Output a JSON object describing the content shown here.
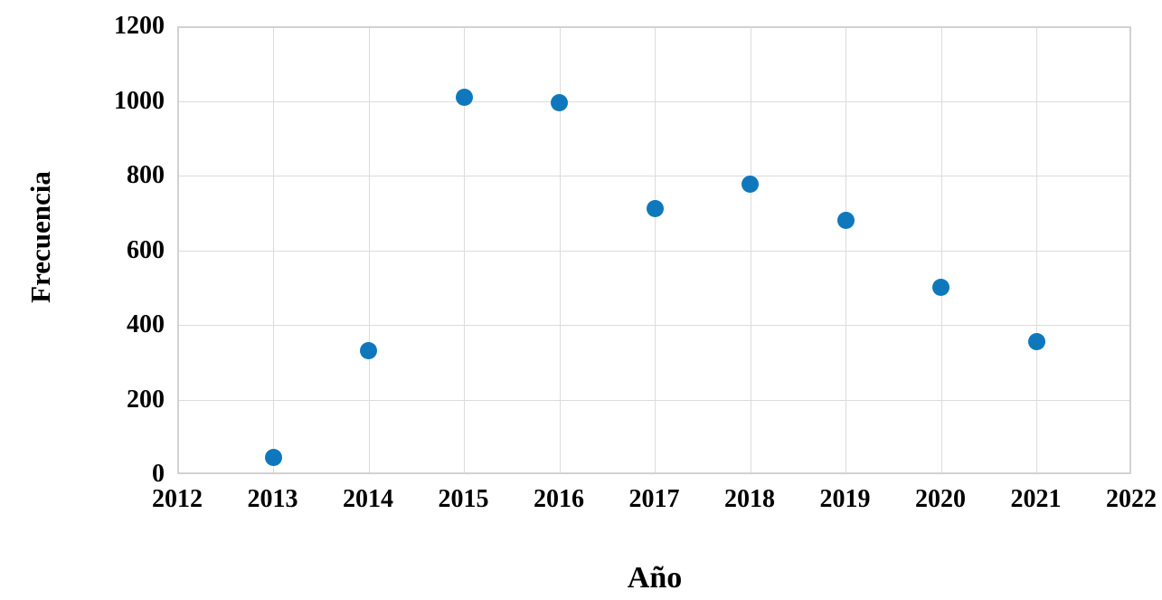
{
  "chart_data": {
    "type": "scatter",
    "title": "",
    "xlabel": "Año",
    "ylabel": "Frecuencia",
    "x": [
      2013,
      2014,
      2015,
      2016,
      2017,
      2018,
      2019,
      2020,
      2021
    ],
    "y": [
      46,
      330,
      1010,
      994,
      712,
      777,
      681,
      500,
      355
    ],
    "xlim": [
      2012,
      2022
    ],
    "ylim": [
      0,
      1200
    ],
    "x_ticks": [
      2012,
      2013,
      2014,
      2015,
      2016,
      2017,
      2018,
      2019,
      2020,
      2021,
      2022
    ],
    "y_ticks": [
      0,
      200,
      400,
      600,
      800,
      1000,
      1200
    ],
    "grid": true,
    "legend": "none",
    "colors": {
      "point": "#0f78bc",
      "gridline": "#dcdcdc",
      "plot_border": "#d2d2d2",
      "text": "#000000",
      "background": "#ffffff"
    }
  }
}
